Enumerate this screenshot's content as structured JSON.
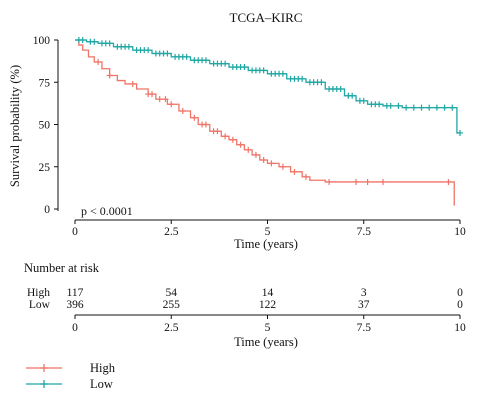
{
  "chart_data": {
    "type": "line",
    "title": "TCGA–KIRC",
    "xlabel": "Time (years)",
    "ylabel": "Survival probability (%)",
    "xlim": [
      0,
      10
    ],
    "ylim": [
      0,
      100
    ],
    "x_ticks": [
      "0",
      "2.5",
      "5",
      "7.5",
      "10"
    ],
    "y_ticks": [
      "0",
      "25",
      "50",
      "75",
      "100"
    ],
    "annotation": "p < 0.0001",
    "legend_position": "bottom-left",
    "series": [
      {
        "name": "High",
        "color": "#f07468",
        "points": [
          [
            0,
            100
          ],
          [
            0.1,
            97
          ],
          [
            0.2,
            94
          ],
          [
            0.35,
            90
          ],
          [
            0.5,
            87
          ],
          [
            0.7,
            83
          ],
          [
            0.9,
            79
          ],
          [
            1.1,
            76
          ],
          [
            1.3,
            74
          ],
          [
            1.6,
            71
          ],
          [
            1.9,
            68
          ],
          [
            2.1,
            65
          ],
          [
            2.4,
            62
          ],
          [
            2.7,
            58
          ],
          [
            3.0,
            54
          ],
          [
            3.2,
            50
          ],
          [
            3.5,
            46
          ],
          [
            3.8,
            43
          ],
          [
            4.0,
            41
          ],
          [
            4.2,
            38
          ],
          [
            4.4,
            35
          ],
          [
            4.6,
            32
          ],
          [
            4.8,
            29
          ],
          [
            5.0,
            27
          ],
          [
            5.3,
            25
          ],
          [
            5.6,
            22
          ],
          [
            5.9,
            19
          ],
          [
            6.1,
            17
          ],
          [
            6.5,
            16
          ],
          [
            9.0,
            16
          ],
          [
            9.8,
            16
          ],
          [
            9.85,
            2
          ]
        ],
        "censor_x": [
          0.6,
          0.9,
          1.5,
          1.9,
          2.0,
          2.2,
          2.35,
          2.5,
          2.8,
          3.1,
          3.3,
          3.4,
          3.6,
          3.7,
          3.9,
          4.1,
          4.3,
          4.5,
          4.7,
          4.9,
          5.1,
          5.4,
          5.7,
          6.0,
          6.6,
          7.3,
          7.6,
          8.0,
          9.7
        ]
      },
      {
        "name": "Low",
        "color": "#1fa7a4",
        "points": [
          [
            0,
            100
          ],
          [
            0.3,
            99
          ],
          [
            0.6,
            98
          ],
          [
            1.0,
            96
          ],
          [
            1.5,
            94
          ],
          [
            2.0,
            92
          ],
          [
            2.5,
            90
          ],
          [
            3.0,
            88
          ],
          [
            3.5,
            86
          ],
          [
            4.0,
            84
          ],
          [
            4.5,
            82
          ],
          [
            5.0,
            80
          ],
          [
            5.5,
            77
          ],
          [
            6.0,
            75
          ],
          [
            6.5,
            71
          ],
          [
            7.0,
            67
          ],
          [
            7.3,
            64
          ],
          [
            7.6,
            62
          ],
          [
            8.0,
            61
          ],
          [
            8.5,
            60
          ],
          [
            9.0,
            60
          ],
          [
            9.5,
            60
          ],
          [
            9.9,
            60
          ],
          [
            9.92,
            45
          ],
          [
            10.0,
            45
          ]
        ],
        "censor_x": [
          0.1,
          0.2,
          0.4,
          0.5,
          0.7,
          0.8,
          0.9,
          1.1,
          1.2,
          1.3,
          1.4,
          1.6,
          1.7,
          1.8,
          1.9,
          2.1,
          2.2,
          2.3,
          2.4,
          2.6,
          2.7,
          2.8,
          2.9,
          3.1,
          3.2,
          3.3,
          3.4,
          3.6,
          3.7,
          3.8,
          3.9,
          4.1,
          4.2,
          4.3,
          4.4,
          4.6,
          4.7,
          4.8,
          4.9,
          5.1,
          5.2,
          5.3,
          5.4,
          5.6,
          5.7,
          5.8,
          5.9,
          6.1,
          6.2,
          6.3,
          6.4,
          6.6,
          6.7,
          6.8,
          6.9,
          7.1,
          7.2,
          7.4,
          7.5,
          7.7,
          7.8,
          7.9,
          8.1,
          8.2,
          8.4,
          8.6,
          8.8,
          9.0,
          9.2,
          9.4,
          9.6,
          9.8,
          10.0
        ]
      }
    ],
    "risk_table": {
      "title": "Number at risk",
      "rows": [
        {
          "label": "High",
          "values": [
            "117",
            "54",
            "14",
            "3",
            "0"
          ]
        },
        {
          "label": "Low",
          "values": [
            "396",
            "255",
            "122",
            "37",
            "0"
          ]
        }
      ]
    }
  }
}
